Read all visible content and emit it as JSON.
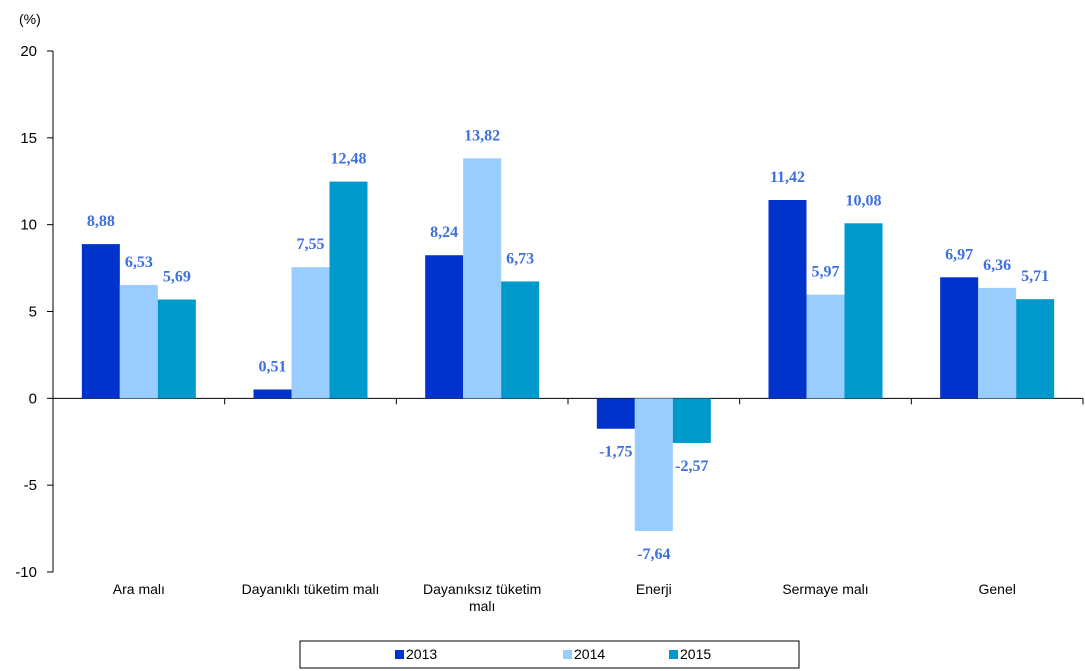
{
  "chart_data": {
    "type": "bar",
    "unit_label": "(%)",
    "categories": [
      "Ara malı",
      "Dayanıklı tüketim malı",
      "Dayanıksız tüketim malı",
      "Enerji",
      "Sermaye malı",
      "Genel"
    ],
    "category_lines": [
      [
        "Ara malı"
      ],
      [
        "Dayanıklı tüketim malı"
      ],
      [
        "Dayanıksız tüketim",
        "malı"
      ],
      [
        "Enerji"
      ],
      [
        "Sermaye malı"
      ],
      [
        "Genel"
      ]
    ],
    "series": [
      {
        "name": "2013",
        "color": "#0033cc",
        "values": [
          8.88,
          0.51,
          8.24,
          -1.75,
          11.42,
          6.97
        ],
        "labels": [
          "8,88",
          "0,51",
          "8,24",
          "-1,75",
          "11,42",
          "6,97"
        ]
      },
      {
        "name": "2014",
        "color": "#99ccff",
        "values": [
          6.53,
          7.55,
          13.82,
          -7.64,
          5.97,
          6.36
        ],
        "labels": [
          "6,53",
          "7,55",
          "13,82",
          "-7,64",
          "5,97",
          "6,36"
        ]
      },
      {
        "name": "2015",
        "color": "#0099cc",
        "values": [
          5.69,
          12.48,
          6.73,
          -2.57,
          10.08,
          5.71
        ],
        "labels": [
          "5,69",
          "12,48",
          "6,73",
          "-2,57",
          "10,08",
          "5,71"
        ]
      }
    ],
    "ylim": [
      -10,
      20
    ],
    "yticks": [
      -10,
      -5,
      0,
      5,
      10,
      15,
      20
    ],
    "data_label_color": "#3d6fe0",
    "grid": false,
    "legend_position": "bottom"
  }
}
